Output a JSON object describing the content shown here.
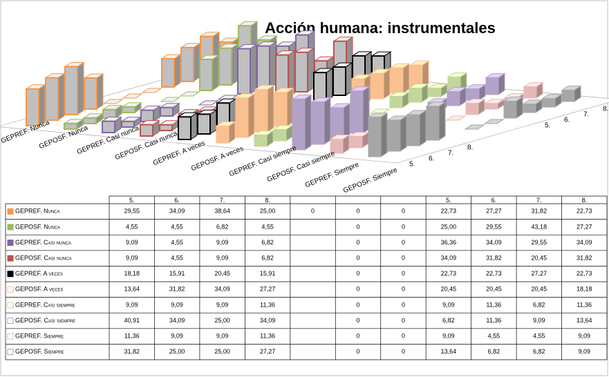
{
  "chart_data": {
    "type": "bar3d",
    "title": "Acción humana: instrumentales",
    "categories": [
      "5.",
      "6.",
      "7.",
      "8.",
      null,
      null,
      null,
      "5.",
      "6.",
      "7.",
      "8."
    ],
    "series": [
      {
        "name": "GEPREF. Nunca",
        "color": "#f79646",
        "values": [
          29.55,
          34.09,
          38.64,
          25.0,
          0,
          0,
          0,
          22.73,
          27.27,
          31.82,
          22.73
        ],
        "value_labels": [
          "29,55",
          "34,09",
          "38,64",
          "25,00",
          "0",
          "0",
          "0",
          "22,73",
          "27,27",
          "31,82",
          "22,73"
        ]
      },
      {
        "name": "GEPOSF. Nunca",
        "color": "#9bbb59",
        "values": [
          4.55,
          4.55,
          6.82,
          4.55,
          null,
          0,
          0,
          25.0,
          29.55,
          43.18,
          27.27
        ],
        "value_labels": [
          "4,55",
          "4,55",
          "6,82",
          "4,55",
          null,
          "0",
          "0",
          "25,00",
          "29,55",
          "43,18",
          "27,27"
        ]
      },
      {
        "name": "GEPREF. Casi nunca",
        "color": "#8064a2",
        "values": [
          9.09,
          4.55,
          9.09,
          6.82,
          null,
          0,
          0,
          36.36,
          34.09,
          29.55,
          34.09
        ],
        "value_labels": [
          "9,09",
          "4,55",
          "9,09",
          "6,82",
          null,
          "0",
          "0",
          "36,36",
          "34,09",
          "29,55",
          "34,09"
        ]
      },
      {
        "name": "GEPOSF. Casi nunca",
        "color": "#c0504d",
        "values": [
          9.09,
          4.55,
          9.09,
          6.82,
          null,
          0,
          0,
          34.09,
          31.82,
          20.45,
          31.82
        ],
        "value_labels": [
          "9,09",
          "4,55",
          "9,09",
          "6,82",
          null,
          "0",
          "0",
          "34,09",
          "31,82",
          "20,45",
          "31,82"
        ]
      },
      {
        "name": "GEPREF. A veces",
        "color": "#000000",
        "values": [
          18.18,
          15.91,
          20.45,
          15.91,
          null,
          0,
          0,
          22.73,
          22.73,
          27.27,
          22.73
        ],
        "value_labels": [
          "18,18",
          "15,91",
          "20,45",
          "15,91",
          null,
          "0",
          "0",
          "22,73",
          "22,73",
          "27,27",
          "22,73"
        ]
      },
      {
        "name": "GEPOSF. A veces",
        "color": "#fac090",
        "values": [
          13.64,
          31.82,
          34.09,
          27.27,
          null,
          0,
          0,
          20.45,
          20.45,
          20.45,
          18.18
        ],
        "value_labels": [
          "13,64",
          "31,82",
          "34,09",
          "27,27",
          null,
          "0",
          "0",
          "20,45",
          "20,45",
          "20,45",
          "18,18"
        ]
      },
      {
        "name": "GEPREF. Casi siempre",
        "color": "#c3d69b",
        "values": [
          9.09,
          9.09,
          9.09,
          11.36,
          null,
          0,
          0,
          9.09,
          11.36,
          6.82,
          11.36
        ],
        "value_labels": [
          "9,09",
          "9,09",
          "9,09",
          "11,36",
          null,
          "0",
          "0",
          "9,09",
          "11,36",
          "6,82",
          "11,36"
        ]
      },
      {
        "name": "GEPOSF. Casi siempre",
        "color": "#b3a2c7",
        "values": [
          40.91,
          34.09,
          25.0,
          34.09,
          null,
          0,
          0,
          6.82,
          11.36,
          9.09,
          13.64
        ],
        "value_labels": [
          "40,91",
          "34,09",
          "25,00",
          "34,09",
          null,
          "0",
          "0",
          "6,82",
          "11,36",
          "9,09",
          "13,64"
        ]
      },
      {
        "name": "GEPREF. Siempre",
        "color": "#e6b9b8",
        "values": [
          11.36,
          9.09,
          9.09,
          11.36,
          null,
          0,
          0,
          9.09,
          4.55,
          4.55,
          9.09
        ],
        "value_labels": [
          "11,36",
          "9,09",
          "9,09",
          "11,36",
          null,
          "0",
          "0",
          "9,09",
          "4,55",
          "4,55",
          "9,09"
        ]
      },
      {
        "name": "GEPOSF. Siempre",
        "color": "#a6a6a6",
        "values": [
          31.82,
          25.0,
          25.0,
          27.27,
          null,
          0,
          0,
          13.64,
          6.82,
          6.82,
          9.09
        ],
        "value_labels": [
          "31,82",
          "25,00",
          "25,00",
          "27,27",
          null,
          "0",
          "0",
          "13,64",
          "6,82",
          "6,82",
          "9,09"
        ]
      }
    ]
  }
}
